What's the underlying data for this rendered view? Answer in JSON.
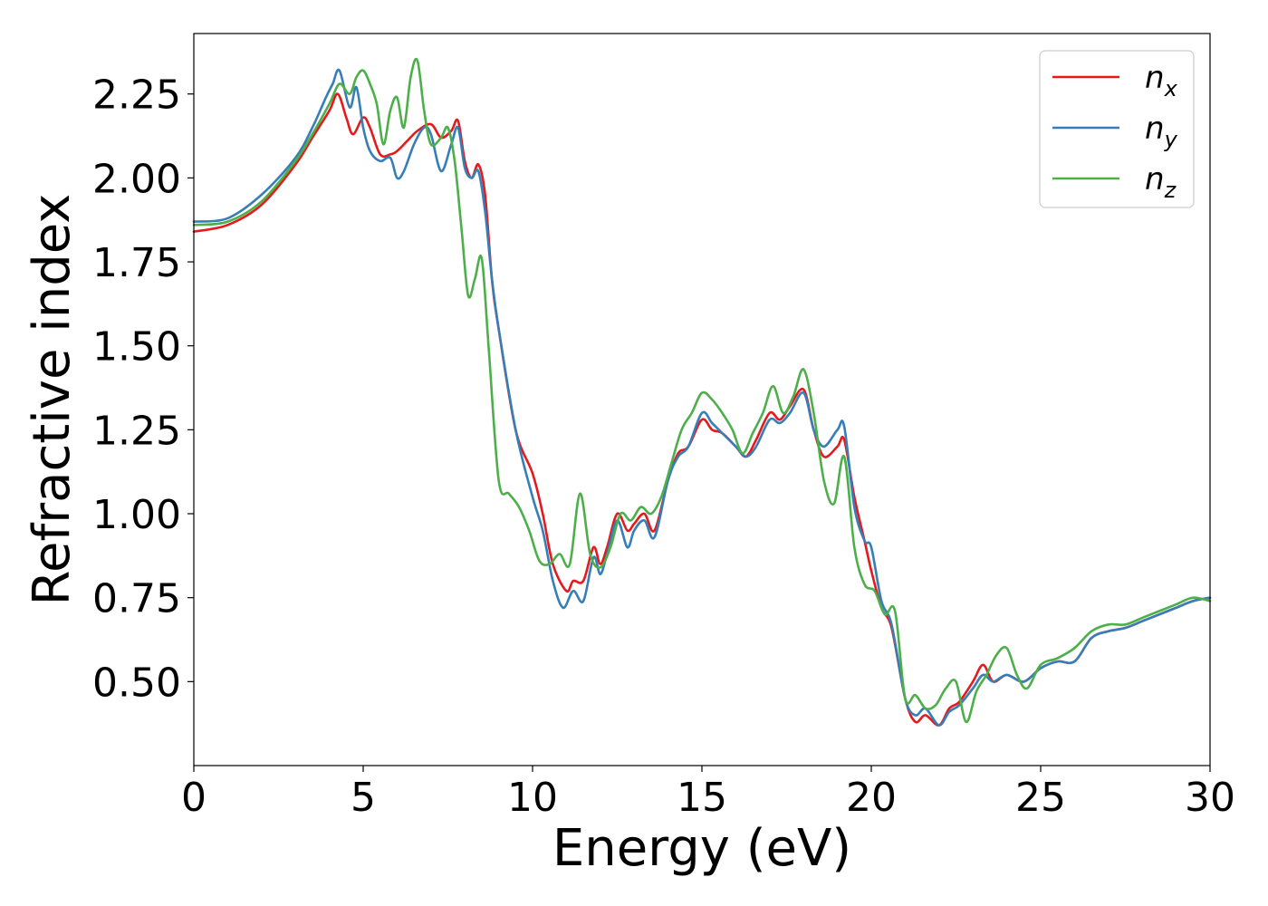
{
  "chart_data": {
    "type": "line",
    "title": "",
    "xlabel": "Energy (eV)",
    "ylabel": "Refractive index",
    "xlim": [
      0,
      30
    ],
    "ylim": [
      0.25,
      2.43
    ],
    "xticks": [
      {
        "value": 0,
        "label": "0"
      },
      {
        "value": 5,
        "label": "5"
      },
      {
        "value": 10,
        "label": "10"
      },
      {
        "value": 15,
        "label": "15"
      },
      {
        "value": 20,
        "label": "20"
      },
      {
        "value": 25,
        "label": "25"
      },
      {
        "value": 30,
        "label": "30"
      }
    ],
    "yticks": [
      {
        "value": 0.5,
        "label": "0.50"
      },
      {
        "value": 0.75,
        "label": "0.75"
      },
      {
        "value": 1.0,
        "label": "1.00"
      },
      {
        "value": 1.25,
        "label": "1.25"
      },
      {
        "value": 1.5,
        "label": "1.50"
      },
      {
        "value": 1.75,
        "label": "1.75"
      },
      {
        "value": 2.0,
        "label": "2.00"
      },
      {
        "value": 2.25,
        "label": "2.25"
      }
    ],
    "grid": false,
    "legend_position": "top-right",
    "series": [
      {
        "name": "n",
        "subscript": "x",
        "color": "#e41a1c",
        "x": [
          0,
          1,
          2,
          3,
          3.5,
          4,
          4.25,
          4.5,
          4.7,
          5,
          5.2,
          5.5,
          5.8,
          6,
          6.3,
          6.6,
          7,
          7.3,
          7.6,
          7.8,
          8,
          8.2,
          8.4,
          8.6,
          8.8,
          9,
          9.5,
          10,
          10.3,
          10.6,
          11,
          11.2,
          11.5,
          11.8,
          12,
          12.2,
          12.5,
          12.8,
          13,
          13.3,
          13.6,
          14,
          14.3,
          14.6,
          15,
          15.3,
          15.6,
          16,
          16.3,
          16.6,
          17,
          17.3,
          17.6,
          18,
          18.3,
          18.6,
          19,
          19.2,
          19.5,
          19.8,
          20,
          20.3,
          20.6,
          21,
          21.3,
          21.6,
          22,
          22.3,
          22.6,
          23,
          23.3,
          23.6,
          24,
          24.5,
          25,
          25.5,
          26,
          26.5,
          27,
          27.5,
          28,
          28.5,
          29,
          29.5,
          30
        ],
        "y": [
          1.84,
          1.86,
          1.92,
          2.04,
          2.12,
          2.2,
          2.25,
          2.18,
          2.13,
          2.18,
          2.15,
          2.07,
          2.07,
          2.08,
          2.11,
          2.14,
          2.16,
          2.12,
          2.14,
          2.17,
          2.05,
          2.0,
          2.04,
          1.95,
          1.7,
          1.55,
          1.25,
          1.12,
          1.0,
          0.85,
          0.77,
          0.8,
          0.8,
          0.9,
          0.85,
          0.9,
          1.0,
          0.95,
          0.97,
          1.0,
          0.95,
          1.1,
          1.18,
          1.2,
          1.28,
          1.25,
          1.24,
          1.2,
          1.17,
          1.22,
          1.3,
          1.28,
          1.32,
          1.37,
          1.25,
          1.17,
          1.2,
          1.22,
          1.05,
          0.92,
          0.83,
          0.72,
          0.66,
          0.45,
          0.38,
          0.4,
          0.37,
          0.42,
          0.44,
          0.5,
          0.55,
          0.5,
          0.52,
          0.5,
          0.54,
          0.56,
          0.56,
          0.63,
          0.65,
          0.66,
          0.68,
          0.7,
          0.72,
          0.74,
          0.75
        ]
      },
      {
        "name": "n",
        "subscript": "y",
        "color": "#377eb8",
        "x": [
          0,
          1,
          2,
          3,
          3.5,
          3.9,
          4.1,
          4.3,
          4.6,
          4.8,
          5,
          5.2,
          5.5,
          5.8,
          6,
          6.2,
          6.5,
          6.8,
          7,
          7.3,
          7.6,
          7.8,
          8,
          8.2,
          8.4,
          8.6,
          8.8,
          9,
          9.5,
          10,
          10.3,
          10.6,
          10.9,
          11.2,
          11.5,
          11.8,
          12,
          12.2,
          12.5,
          12.8,
          13,
          13.3,
          13.6,
          14,
          14.3,
          14.6,
          15,
          15.3,
          15.6,
          16,
          16.3,
          16.6,
          17,
          17.3,
          17.6,
          18,
          18.3,
          18.6,
          19,
          19.2,
          19.5,
          19.8,
          20,
          20.3,
          20.6,
          21,
          21.3,
          21.6,
          22,
          22.3,
          22.6,
          23,
          23.3,
          23.6,
          24,
          24.5,
          25,
          25.5,
          26,
          26.5,
          27,
          27.5,
          28,
          28.5,
          29,
          29.5,
          30
        ],
        "y": [
          1.87,
          1.88,
          1.95,
          2.06,
          2.15,
          2.24,
          2.28,
          2.32,
          2.21,
          2.27,
          2.15,
          2.08,
          2.05,
          2.06,
          2.0,
          2.02,
          2.1,
          2.15,
          2.13,
          2.02,
          2.1,
          2.15,
          2.03,
          2.0,
          2.02,
          1.9,
          1.7,
          1.55,
          1.25,
          1.05,
          0.95,
          0.8,
          0.72,
          0.77,
          0.74,
          0.87,
          0.82,
          0.88,
          0.98,
          0.9,
          0.95,
          0.98,
          0.93,
          1.1,
          1.17,
          1.2,
          1.3,
          1.27,
          1.24,
          1.2,
          1.17,
          1.2,
          1.28,
          1.27,
          1.3,
          1.36,
          1.25,
          1.2,
          1.25,
          1.26,
          1.02,
          0.92,
          0.9,
          0.74,
          0.67,
          0.45,
          0.4,
          0.42,
          0.37,
          0.41,
          0.43,
          0.48,
          0.52,
          0.5,
          0.52,
          0.5,
          0.54,
          0.56,
          0.56,
          0.63,
          0.65,
          0.66,
          0.68,
          0.7,
          0.72,
          0.74,
          0.75
        ]
      },
      {
        "name": "n",
        "subscript": "z",
        "color": "#4daf4a",
        "x": [
          0,
          1,
          2,
          3,
          3.5,
          4,
          4.3,
          4.6,
          4.8,
          5,
          5.2,
          5.4,
          5.6,
          5.8,
          6,
          6.2,
          6.4,
          6.6,
          6.8,
          7,
          7.3,
          7.5,
          7.7,
          7.9,
          8.1,
          8.3,
          8.5,
          8.7,
          9,
          9.3,
          9.6,
          9.9,
          10.2,
          10.5,
          10.8,
          11.1,
          11.4,
          11.7,
          12,
          12.3,
          12.6,
          12.9,
          13.2,
          13.5,
          13.8,
          14.1,
          14.4,
          14.7,
          15,
          15.3,
          15.6,
          15.9,
          16.2,
          16.5,
          16.8,
          17.1,
          17.4,
          17.7,
          18,
          18.3,
          18.6,
          18.9,
          19.2,
          19.5,
          19.8,
          20.1,
          20.4,
          20.7,
          21,
          21.3,
          21.6,
          21.9,
          22.2,
          22.5,
          22.8,
          23.1,
          23.4,
          23.7,
          24,
          24.3,
          24.6,
          25,
          25.5,
          26,
          26.5,
          27,
          27.5,
          28,
          28.5,
          29,
          29.5,
          30
        ],
        "y": [
          1.86,
          1.87,
          1.93,
          2.05,
          2.13,
          2.22,
          2.28,
          2.25,
          2.3,
          2.32,
          2.28,
          2.22,
          2.1,
          2.2,
          2.24,
          2.15,
          2.3,
          2.35,
          2.2,
          2.1,
          2.12,
          2.15,
          2.05,
          1.85,
          1.65,
          1.7,
          1.76,
          1.5,
          1.1,
          1.06,
          1.02,
          0.95,
          0.86,
          0.85,
          0.88,
          0.85,
          1.06,
          0.88,
          0.84,
          0.9,
          1.0,
          0.98,
          1.02,
          1.0,
          1.05,
          1.15,
          1.25,
          1.3,
          1.36,
          1.34,
          1.3,
          1.25,
          1.18,
          1.24,
          1.3,
          1.38,
          1.3,
          1.35,
          1.43,
          1.3,
          1.1,
          1.03,
          1.17,
          0.9,
          0.79,
          0.77,
          0.7,
          0.71,
          0.45,
          0.46,
          0.42,
          0.43,
          0.48,
          0.5,
          0.38,
          0.47,
          0.52,
          0.58,
          0.6,
          0.52,
          0.48,
          0.55,
          0.57,
          0.6,
          0.65,
          0.67,
          0.67,
          0.69,
          0.71,
          0.73,
          0.75,
          0.74
        ]
      }
    ]
  }
}
